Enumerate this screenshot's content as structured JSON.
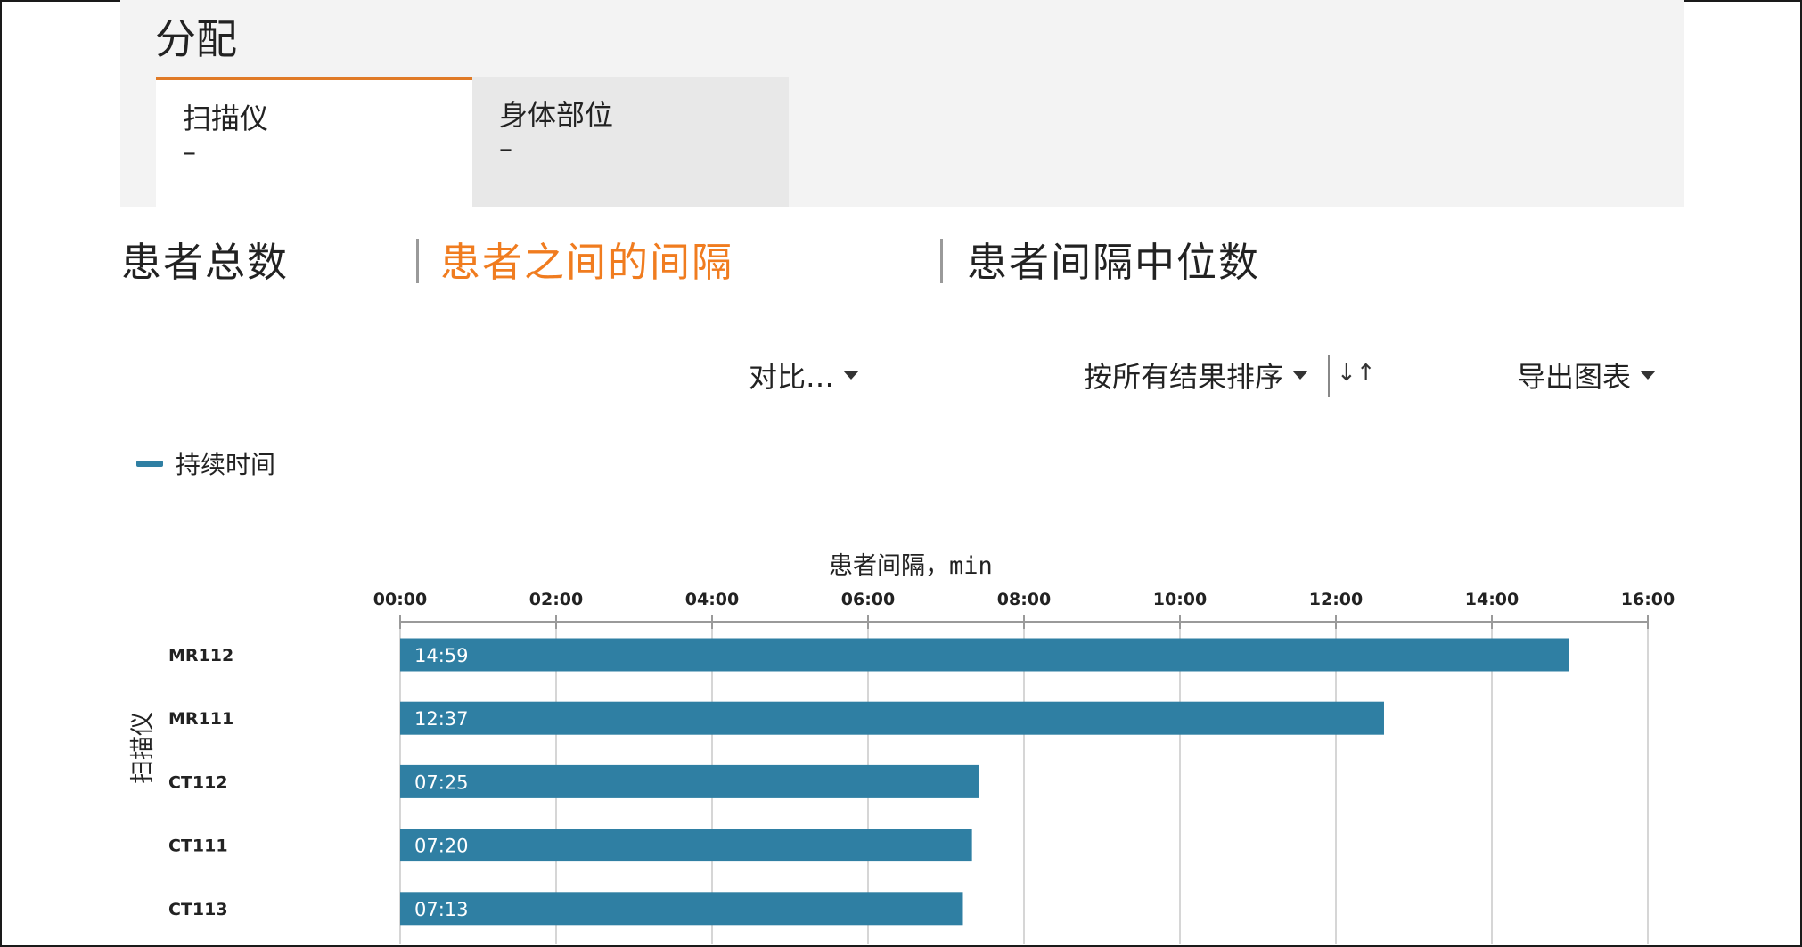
{
  "panel": {
    "title": "分配",
    "tabs": [
      {
        "label": "扫描仪",
        "value": "–",
        "active": true
      },
      {
        "label": "身体部位",
        "value": "–",
        "active": false
      }
    ]
  },
  "metric_tabs": [
    {
      "label": "患者总数",
      "active": false
    },
    {
      "label": "患者之间的间隔",
      "active": true
    },
    {
      "label": "患者间隔中位数",
      "active": false
    }
  ],
  "toolbar": {
    "compare_label": "对比…",
    "sort_label": "按所有结果排序",
    "sort_icon": "sort-direction-icon",
    "export_label": "导出图表"
  },
  "legend": {
    "label": "持续时间",
    "color": "#2f7fa3"
  },
  "colors": {
    "accent": "#e07a26",
    "bar": "#2f7fa3",
    "active_tab_text": "#f07c1f"
  },
  "chart_data": {
    "type": "bar",
    "orientation": "horizontal",
    "xlabel": "患者间隔，min",
    "ylabel": "扫描仪",
    "xlim": [
      0,
      16
    ],
    "xticks": [
      "00:00",
      "02:00",
      "04:00",
      "06:00",
      "08:00",
      "10:00",
      "12:00",
      "14:00",
      "16:00"
    ],
    "categories": [
      "MR112",
      "MR111",
      "CT112",
      "CT111",
      "CT113"
    ],
    "values": [
      14.983,
      12.617,
      7.417,
      7.333,
      7.217
    ],
    "value_labels": [
      "14:59",
      "12:37",
      "07:25",
      "07:20",
      "07:13"
    ],
    "series": [
      {
        "name": "持续时间",
        "values": [
          14.983,
          12.617,
          7.417,
          7.333,
          7.217
        ]
      }
    ],
    "grid": true,
    "legend_position": "top-left"
  }
}
